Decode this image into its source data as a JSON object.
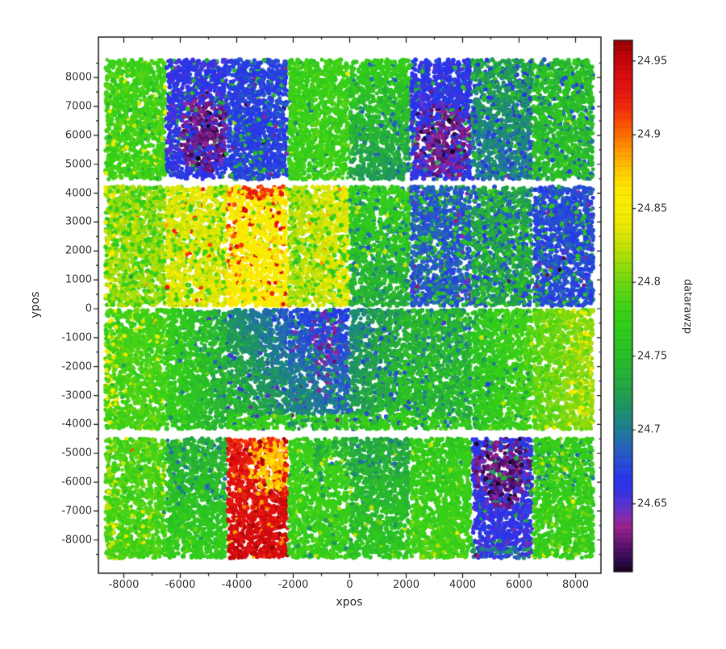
{
  "figure": {
    "background": "#ffffff",
    "axis_color": "#1a1a1a",
    "tick_label_color": "#3a3a3a"
  },
  "chart_data": {
    "type": "scatter",
    "title": "",
    "xlabel": "xpos",
    "ylabel": "ypos",
    "colorbar_label": "datarawzp",
    "x_range": [
      -8900,
      8900
    ],
    "y_range": [
      -9150,
      9400
    ],
    "x_major_ticks": [
      -8000,
      -6000,
      -4000,
      -2000,
      0,
      2000,
      4000,
      6000,
      8000
    ],
    "x_tick_labels": [
      "-8000",
      "-6000",
      "-4000",
      "-2000",
      "0",
      "2000",
      "4000",
      "6000",
      "8000"
    ],
    "x_minor_step": 1000,
    "y_major_ticks": [
      8000,
      7000,
      6000,
      5000,
      4000,
      3000,
      2000,
      1000,
      0,
      -1000,
      -2000,
      -3000,
      -4000,
      -5000,
      -6000,
      -7000,
      -8000
    ],
    "y_tick_labels": [
      "8000",
      "7000",
      "6000",
      "5000",
      "4000",
      "3000",
      "2000",
      "1000",
      "0",
      "-1000",
      "-2000",
      "-3000",
      "-4000",
      "-5000",
      "-6000",
      "-7000",
      "-8000"
    ],
    "y_minor_step": 500,
    "grid": false,
    "legend": "colorbar-right",
    "color_range": [
      24.604,
      24.964
    ],
    "colorbar_ticks": [
      24.95,
      24.9,
      24.85,
      24.8,
      24.75,
      24.7,
      24.65
    ],
    "colorbar_tick_labels": [
      "24.95",
      "24.9",
      "24.85",
      "24.8",
      "24.75",
      "24.7",
      "24.65"
    ],
    "colormap_stops": [
      [
        24.604,
        "#140420"
      ],
      [
        24.612,
        "#300a4e"
      ],
      [
        24.62,
        "#531069"
      ],
      [
        24.628,
        "#7a1a80"
      ],
      [
        24.635,
        "#992290"
      ],
      [
        24.642,
        "#7c2cb4"
      ],
      [
        24.65,
        "#5433d2"
      ],
      [
        24.658,
        "#3632e4"
      ],
      [
        24.666,
        "#2634ec"
      ],
      [
        24.676,
        "#2747da"
      ],
      [
        24.686,
        "#275ec2"
      ],
      [
        24.696,
        "#2174a0"
      ],
      [
        24.706,
        "#1d8683"
      ],
      [
        24.716,
        "#1f9461"
      ],
      [
        24.728,
        "#23a447"
      ],
      [
        24.74,
        "#27b334"
      ],
      [
        24.752,
        "#2bbf27"
      ],
      [
        24.766,
        "#30ca1e"
      ],
      [
        24.78,
        "#38d017"
      ],
      [
        24.795,
        "#5ed513"
      ],
      [
        24.81,
        "#90da0d"
      ],
      [
        24.824,
        "#c2e006"
      ],
      [
        24.838,
        "#e9e802"
      ],
      [
        24.852,
        "#f8ee00"
      ],
      [
        24.864,
        "#ffe700"
      ],
      [
        24.876,
        "#ffc700"
      ],
      [
        24.888,
        "#ff9e00"
      ],
      [
        24.898,
        "#ff7500"
      ],
      [
        24.908,
        "#fb4e04"
      ],
      [
        24.918,
        "#f02d0c"
      ],
      [
        24.93,
        "#e41612"
      ],
      [
        24.942,
        "#d40b0e"
      ],
      [
        24.954,
        "#bb0408"
      ],
      [
        24.964,
        "#930001"
      ]
    ],
    "point_radius_px": 2.6,
    "units2_per_point": 7800,
    "noise_sigma": 0.0075,
    "outlier_fraction": 0.02,
    "seed": 42,
    "column_edges": [
      -8670,
      -6505,
      -4340,
      -2175,
      -10,
      2155,
      4320,
      6485,
      8650
    ],
    "row_bands": {
      "A": [
        4460,
        8640
      ],
      "B": [
        80,
        4250
      ],
      "C": [
        -4180,
        -20
      ],
      "D": [
        -8640,
        -4470
      ]
    },
    "cells": [
      {
        "id": "A1",
        "x": [
          -8670,
          -6505
        ],
        "y": [
          4460,
          8640
        ],
        "v": 24.782,
        "specks": [
          {
            "v": 24.838,
            "f": 0.05
          },
          {
            "v": 24.74,
            "f": 0.05
          }
        ]
      },
      {
        "id": "A2",
        "x": [
          -6505,
          -4340
        ],
        "y": [
          4460,
          8640
        ],
        "v": 24.662,
        "blobs": [
          {
            "cx": -5150,
            "cy": 6100,
            "rx": 980,
            "ry": 1400,
            "v": 24.627,
            "mix": 0.85
          }
        ],
        "specks": [
          {
            "v": 24.606,
            "f": 0.012,
            "region": [
              -5900,
              -4400,
              4800,
              7300
            ]
          },
          {
            "v": 24.74,
            "f": 0.05
          }
        ]
      },
      {
        "id": "A3",
        "x": [
          -4340,
          -2175
        ],
        "y": [
          4460,
          8640
        ],
        "v": 24.672,
        "specks": [
          {
            "v": 24.638,
            "f": 0.02
          },
          {
            "v": 24.745,
            "f": 0.06
          }
        ]
      },
      {
        "id": "A4",
        "x": [
          -2175,
          -10
        ],
        "y": [
          4460,
          8640
        ],
        "v": 24.778,
        "specks": [
          {
            "v": 24.71,
            "f": 0.03
          }
        ]
      },
      {
        "id": "A5",
        "x": [
          -10,
          2155
        ],
        "y": [
          4460,
          8640
        ],
        "v": 24.768,
        "vy": [
          0.006,
          -0.048
        ],
        "specks": [
          {
            "v": 24.69,
            "f": 0.06
          }
        ]
      },
      {
        "id": "A6",
        "x": [
          2155,
          4320
        ],
        "y": [
          4460,
          8640
        ],
        "v": 24.664,
        "blobs": [
          {
            "cx": 3300,
            "cy": 5700,
            "rx": 1050,
            "ry": 1450,
            "v": 24.63,
            "mix": 0.85
          }
        ],
        "specks": [
          {
            "v": 24.606,
            "f": 0.014,
            "region": [
              2400,
              4320,
              4600,
              6900
            ]
          },
          {
            "v": 24.745,
            "f": 0.05
          }
        ]
      },
      {
        "id": "A7",
        "x": [
          4320,
          6485
        ],
        "y": [
          4460,
          8640
        ],
        "v": 24.712,
        "vy": [
          0.012,
          -0.012
        ],
        "specks": [
          {
            "v": 24.668,
            "f": 0.15
          },
          {
            "v": 24.755,
            "f": 0.1
          }
        ]
      },
      {
        "id": "A8",
        "x": [
          6485,
          8650
        ],
        "y": [
          4460,
          8640
        ],
        "v": 24.748,
        "specks": [
          {
            "v": 24.682,
            "f": 0.1
          },
          {
            "v": 24.775,
            "f": 0.1
          }
        ]
      },
      {
        "id": "B1",
        "x": [
          -8670,
          -6505
        ],
        "y": [
          80,
          4250
        ],
        "v": 24.814,
        "specks": [
          {
            "v": 24.778,
            "f": 0.25
          },
          {
            "v": 24.848,
            "f": 0.22,
            "region": [
              -8670,
              -8250,
              80,
              4250
            ]
          },
          {
            "v": 24.9,
            "f": 0.006
          }
        ]
      },
      {
        "id": "B2",
        "x": [
          -6505,
          -4340
        ],
        "y": [
          80,
          4250
        ],
        "v": 24.834,
        "specks": [
          {
            "v": 24.782,
            "f": 0.18
          },
          {
            "v": 24.92,
            "f": 0.02
          }
        ]
      },
      {
        "id": "B3",
        "x": [
          -4340,
          -2175
        ],
        "y": [
          80,
          4250
        ],
        "v": 24.856,
        "blobs": [
          {
            "cx": -3250,
            "cy": 4120,
            "rx": 1150,
            "ry": 320,
            "v": 24.915,
            "mix": 0.8
          },
          {
            "cx": -4250,
            "cy": 2300,
            "rx": 300,
            "ry": 2000,
            "v": 24.905,
            "mix": 0.3
          }
        ],
        "specks": [
          {
            "v": 24.93,
            "f": 0.07
          },
          {
            "v": 24.8,
            "f": 0.05
          }
        ]
      },
      {
        "id": "B4",
        "x": [
          -2175,
          -10
        ],
        "y": [
          80,
          4250
        ],
        "vx": [
          24.818,
          24.838
        ],
        "specks": [
          {
            "v": 24.778,
            "f": 0.18
          },
          {
            "v": 24.888,
            "f": 0.012
          }
        ]
      },
      {
        "id": "B5",
        "x": [
          -10,
          2155
        ],
        "y": [
          80,
          4250
        ],
        "v": 24.766,
        "vy": [
          0.008,
          -0.03
        ],
        "specks": [
          {
            "v": 24.7,
            "f": 0.1
          },
          {
            "v": 24.82,
            "f": 0.02
          }
        ]
      },
      {
        "id": "B6",
        "x": [
          2155,
          4320
        ],
        "y": [
          80,
          4250
        ],
        "v": 24.684,
        "specks": [
          {
            "v": 24.755,
            "f": 0.18
          },
          {
            "v": 24.64,
            "f": 0.035
          }
        ]
      },
      {
        "id": "B7",
        "x": [
          4320,
          6485
        ],
        "y": [
          80,
          4250
        ],
        "v": 24.728,
        "specks": [
          {
            "v": 24.682,
            "f": 0.2
          },
          {
            "v": 24.775,
            "f": 0.15
          }
        ]
      },
      {
        "id": "B8",
        "x": [
          6485,
          8650
        ],
        "y": [
          80,
          4250
        ],
        "v": 24.678,
        "specks": [
          {
            "v": 24.752,
            "f": 0.12
          },
          {
            "v": 24.638,
            "f": 0.03
          }
        ]
      },
      {
        "id": "C1",
        "x": [
          -8670,
          -6505
        ],
        "y": [
          -4180,
          -20
        ],
        "v": 24.785,
        "specks": [
          {
            "v": 24.845,
            "f": 0.2,
            "region": [
              -8670,
              -8250,
              -4180,
              -20
            ]
          },
          {
            "v": 24.84,
            "f": 0.03
          },
          {
            "v": 24.885,
            "f": 0.006
          }
        ]
      },
      {
        "id": "C2",
        "x": [
          -6505,
          -4340
        ],
        "y": [
          -4180,
          -20
        ],
        "vx": [
          24.775,
          24.738
        ],
        "specks": [
          {
            "v": 24.7,
            "f": 0.04
          }
        ]
      },
      {
        "id": "C3",
        "x": [
          -4340,
          -2175
        ],
        "y": [
          -4180,
          -20
        ],
        "vx": [
          24.726,
          24.692
        ],
        "vy": [
          -0.01,
          0.03
        ],
        "rects": [
          {
            "x": [
              -4340,
              -2175
            ],
            "y": [
              -4180,
              -3650
            ],
            "v": 24.775,
            "mix": 0.85
          }
        ],
        "specks": [
          {
            "v": 24.66,
            "f": 0.05
          }
        ]
      },
      {
        "id": "C4",
        "x": [
          -2175,
          -10
        ],
        "y": [
          -4180,
          -20
        ],
        "vx": [
          24.684,
          24.672
        ],
        "vy": [
          -0.006,
          0.03
        ],
        "blobs": [
          {
            "cx": -900,
            "cy": -1400,
            "rx": 500,
            "ry": 1600,
            "v": 24.639,
            "mix": 0.5
          }
        ],
        "rects": [
          {
            "x": [
              -2175,
              -10
            ],
            "y": [
              -4180,
              -3650
            ],
            "v": 24.772,
            "mix": 0.85
          }
        ],
        "specks": [
          {
            "v": 24.637,
            "f": 0.02
          },
          {
            "v": 24.73,
            "f": 0.08
          }
        ]
      },
      {
        "id": "C5",
        "x": [
          -10,
          2155
        ],
        "y": [
          -4180,
          -20
        ],
        "vx": [
          24.712,
          24.75
        ],
        "vy": [
          -0.008,
          0.012
        ],
        "rects": [
          {
            "x": [
              -10,
              2155
            ],
            "y": [
              -4180,
              -3650
            ],
            "v": 24.772,
            "mix": 0.8
          }
        ],
        "specks": [
          {
            "v": 24.682,
            "f": 0.1
          }
        ]
      },
      {
        "id": "C6",
        "x": [
          2155,
          4320
        ],
        "y": [
          -4180,
          -20
        ],
        "v": 24.742,
        "rects": [
          {
            "x": [
              2155,
              4320
            ],
            "y": [
              -4180,
              -3650
            ],
            "v": 24.775,
            "mix": 0.75
          }
        ],
        "specks": [
          {
            "v": 24.7,
            "f": 0.12
          },
          {
            "v": 24.775,
            "f": 0.1
          }
        ]
      },
      {
        "id": "C7",
        "x": [
          4320,
          6485
        ],
        "y": [
          -4180,
          -20
        ],
        "vx": [
          24.76,
          24.788
        ],
        "specks": [
          {
            "v": 24.72,
            "f": 0.06
          }
        ]
      },
      {
        "id": "C8",
        "x": [
          6485,
          8650
        ],
        "y": [
          -4180,
          -20
        ],
        "vx": [
          24.792,
          24.812
        ],
        "specks": [
          {
            "v": 24.848,
            "f": 0.12,
            "region": [
              7700,
              8650,
              -4180,
              -20
            ]
          },
          {
            "v": 24.84,
            "f": 0.02
          }
        ]
      },
      {
        "id": "D1",
        "x": [
          -8670,
          -6505
        ],
        "y": [
          -8640,
          -4470
        ],
        "v": 24.786,
        "specks": [
          {
            "v": 24.835,
            "f": 0.06
          },
          {
            "v": 24.818,
            "f": 0.15,
            "region": [
              -8670,
              -8200,
              -8640,
              -4470
            ]
          }
        ]
      },
      {
        "id": "D2",
        "x": [
          -6505,
          -4340
        ],
        "y": [
          -8640,
          -4470
        ],
        "v": 24.766,
        "vy": [
          -0.028,
          0.006
        ],
        "specks": [
          {
            "v": 24.7,
            "f": 0.1,
            "region": [
              -6505,
              -4340,
              -6600,
              -4470
            ]
          },
          {
            "v": 24.8,
            "f": 0.03
          }
        ]
      },
      {
        "id": "D3",
        "x": [
          -4340,
          -2175
        ],
        "y": [
          -8640,
          -4470
        ],
        "v": 24.928,
        "vy": [
          -0.004,
          0.016
        ],
        "blobs": [
          {
            "cx": -2850,
            "cy": -5400,
            "rx": 780,
            "ry": 1050,
            "v": 24.876,
            "mix": 0.85
          }
        ],
        "specks": [
          {
            "v": 24.96,
            "f": 0.05
          },
          {
            "v": 24.888,
            "f": 0.04
          }
        ]
      },
      {
        "id": "D4",
        "x": [
          -2175,
          -10
        ],
        "y": [
          -8640,
          -4470
        ],
        "v": 24.776,
        "rects": [
          {
            "x": [
              -1300,
              -10
            ],
            "y": [
              -5500,
              -4470
            ],
            "v": 24.742,
            "mix": 0.7
          }
        ],
        "specks": [
          {
            "v": 24.82,
            "f": 0.02
          },
          {
            "v": 24.72,
            "f": 0.03
          }
        ]
      },
      {
        "id": "D5",
        "x": [
          -10,
          2155
        ],
        "y": [
          -8640,
          -4470
        ],
        "v": 24.758,
        "vy": [
          -0.026,
          0.004
        ],
        "specks": [
          {
            "v": 24.7,
            "f": 0.08,
            "region": [
              -10,
              2155,
              -5800,
              -4470
            ]
          },
          {
            "v": 24.81,
            "f": 0.02
          }
        ]
      },
      {
        "id": "D6",
        "x": [
          2155,
          4320
        ],
        "y": [
          -8640,
          -4470
        ],
        "v": 24.772,
        "vy": [
          -0.004,
          0.012
        ],
        "specks": [
          {
            "v": 24.82,
            "f": 0.03
          }
        ]
      },
      {
        "id": "D7",
        "x": [
          4320,
          6485
        ],
        "y": [
          -8640,
          -4470
        ],
        "v": 24.662,
        "blobs": [
          {
            "cx": 5400,
            "cy": -5600,
            "rx": 1020,
            "ry": 1300,
            "v": 24.624,
            "mix": 0.9
          }
        ],
        "rects": [
          {
            "x": [
              4320,
              6485
            ],
            "y": [
              -8640,
              -8250
            ],
            "v": 24.7,
            "mix": 0.6
          }
        ],
        "specks": [
          {
            "v": 24.605,
            "f": 0.03,
            "region": [
              4600,
              6200,
              -6800,
              -4700
            ]
          },
          {
            "v": 24.648,
            "f": 0.08
          },
          {
            "v": 24.73,
            "f": 0.05
          }
        ]
      },
      {
        "id": "D8",
        "x": [
          6485,
          8650
        ],
        "y": [
          -8640,
          -4470
        ],
        "v": 24.772,
        "specks": [
          {
            "v": 24.71,
            "f": 0.12,
            "region": [
              6485,
              8650,
              -6300,
              -4470
            ]
          },
          {
            "v": 24.8,
            "f": 0.1
          },
          {
            "v": 24.84,
            "f": 0.01
          }
        ]
      }
    ]
  }
}
